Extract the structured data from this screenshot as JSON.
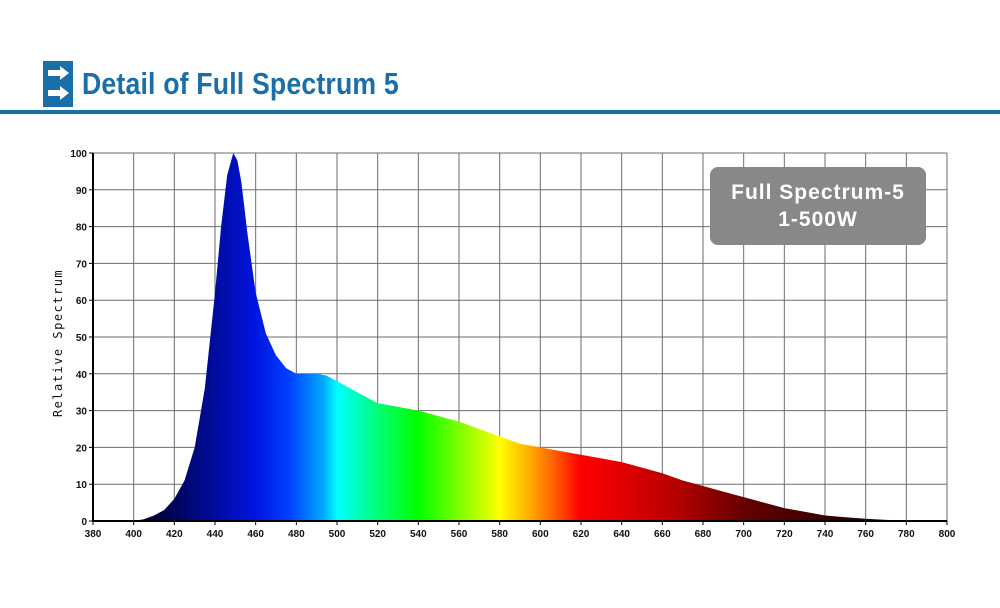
{
  "header": {
    "title": "Detail of Full Spectrum 5",
    "accent_color": "#1a6fa8",
    "icon": "double-arrow-right-icon"
  },
  "legend": {
    "line1": "Full Spectrum-5",
    "line2": "1-500W"
  },
  "chart_data": {
    "type": "area",
    "title": "",
    "xlabel": "",
    "ylabel": "Relative Spectrum",
    "xlim": [
      380,
      800
    ],
    "ylim": [
      0,
      100
    ],
    "grid": true,
    "fill": "visible-spectrum-gradient",
    "x_ticks": [
      380,
      400,
      420,
      440,
      460,
      480,
      500,
      520,
      540,
      560,
      580,
      600,
      620,
      640,
      660,
      680,
      700,
      720,
      740,
      760,
      780,
      800
    ],
    "y_ticks": [
      0,
      10,
      20,
      30,
      40,
      50,
      60,
      70,
      80,
      90,
      100
    ],
    "series": [
      {
        "x": [
          380,
          400,
          405,
          410,
          415,
          420,
          425,
          430,
          435,
          440,
          443,
          446,
          449,
          451,
          453,
          456,
          460,
          465,
          470,
          475,
          480,
          485,
          490,
          495,
          500,
          505,
          510,
          515,
          520,
          530,
          540,
          550,
          560,
          570,
          580,
          590,
          600,
          610,
          620,
          630,
          640,
          650,
          660,
          670,
          680,
          690,
          700,
          710,
          720,
          730,
          740,
          750,
          760,
          770,
          780,
          790,
          800
        ],
        "y": [
          0,
          0,
          0.5,
          1.5,
          3,
          6,
          11,
          20,
          36,
          62,
          80,
          94,
          100,
          98,
          92,
          78,
          62,
          51,
          45,
          41.5,
          40,
          40,
          40,
          39.5,
          38,
          36.5,
          35,
          33.5,
          32,
          31,
          30,
          28.5,
          27,
          25,
          23,
          21,
          20,
          19,
          18,
          17,
          16,
          14.5,
          13,
          11,
          9.5,
          8,
          6.5,
          5,
          3.5,
          2.5,
          1.5,
          1,
          0.6,
          0.3,
          0.1,
          0,
          0
        ]
      }
    ]
  }
}
